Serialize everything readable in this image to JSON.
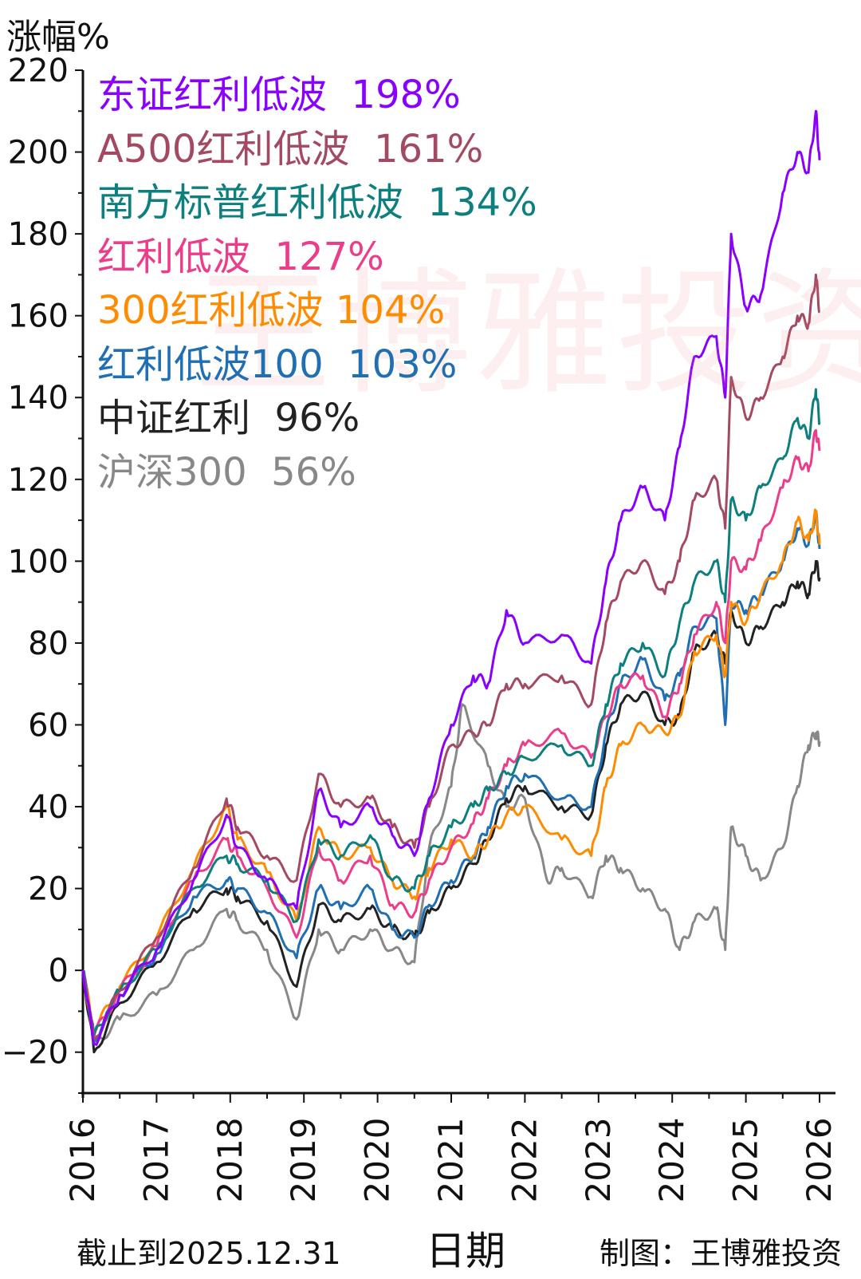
{
  "header": {
    "ylabel": "涨幅%"
  },
  "footer": {
    "cutoff": "截止到2025.12.31",
    "xlabel": "日期",
    "credit": "制图：王博雅投资"
  },
  "watermark": "王博雅投资",
  "chart_data": {
    "type": "line",
    "xlabel": "日期",
    "ylabel": "涨幅%",
    "xlim": [
      2016,
      2026
    ],
    "ylim": [
      -30,
      220
    ],
    "x_ticks": [
      "2016",
      "2017",
      "2018",
      "2019",
      "2020",
      "2021",
      "2022",
      "2023",
      "2024",
      "2025",
      "2026"
    ],
    "y_ticks": [
      "220",
      "200",
      "180",
      "160",
      "140",
      "120",
      "100",
      "80",
      "60",
      "40",
      "20",
      "0",
      "−20"
    ],
    "legend_position": "top-left",
    "grid": false,
    "series": [
      {
        "name": "东证红利低波",
        "label": "198%",
        "color": "#8a00ff",
        "x": [
          2016.0,
          2016.15,
          2016.5,
          2017.0,
          2017.5,
          2017.95,
          2018.1,
          2018.5,
          2018.9,
          2019.2,
          2019.5,
          2019.9,
          2020.2,
          2020.5,
          2020.7,
          2021.0,
          2021.3,
          2021.5,
          2021.75,
          2022.0,
          2022.5,
          2022.9,
          2023.1,
          2023.3,
          2023.6,
          2023.9,
          2024.1,
          2024.3,
          2024.6,
          2024.72,
          2024.8,
          2025.0,
          2025.2,
          2025.5,
          2025.7,
          2025.85,
          2025.95,
          2026.0
        ],
        "y": [
          0,
          -18,
          -6,
          5,
          22,
          38,
          30,
          22,
          15,
          44,
          35,
          40,
          33,
          28,
          42,
          60,
          72,
          70,
          88,
          80,
          82,
          75,
          95,
          110,
          118,
          110,
          128,
          150,
          155,
          140,
          180,
          162,
          165,
          190,
          200,
          195,
          210,
          198
        ]
      },
      {
        "name": "A500红利低波",
        "label": "161%",
        "color": "#a34a62",
        "x": [
          2016.0,
          2016.15,
          2016.5,
          2017.0,
          2017.5,
          2017.95,
          2018.1,
          2018.5,
          2018.9,
          2019.2,
          2019.5,
          2019.9,
          2020.2,
          2020.5,
          2020.7,
          2021.0,
          2021.3,
          2021.5,
          2021.75,
          2022.0,
          2022.5,
          2022.9,
          2023.1,
          2023.3,
          2023.6,
          2023.9,
          2024.1,
          2024.3,
          2024.6,
          2024.72,
          2024.8,
          2025.0,
          2025.2,
          2025.5,
          2025.7,
          2025.85,
          2025.95,
          2026.0
        ],
        "y": [
          0,
          -17,
          -5,
          8,
          25,
          42,
          35,
          28,
          22,
          48,
          40,
          42,
          35,
          30,
          40,
          55,
          58,
          60,
          70,
          70,
          72,
          65,
          85,
          95,
          100,
          92,
          100,
          115,
          120,
          108,
          145,
          135,
          140,
          150,
          160,
          158,
          170,
          161
        ]
      },
      {
        "name": "南方标普红利低波",
        "label": "134%",
        "color": "#0e7f7f",
        "x": [
          2016.0,
          2016.15,
          2016.5,
          2017.0,
          2017.5,
          2017.95,
          2018.1,
          2018.5,
          2018.9,
          2019.2,
          2019.5,
          2019.9,
          2020.2,
          2020.5,
          2020.7,
          2021.0,
          2021.3,
          2021.5,
          2021.75,
          2022.0,
          2022.5,
          2022.9,
          2023.1,
          2023.3,
          2023.6,
          2023.9,
          2024.1,
          2024.3,
          2024.6,
          2024.72,
          2024.8,
          2025.0,
          2025.2,
          2025.5,
          2025.7,
          2025.85,
          2025.95,
          2026.0
        ],
        "y": [
          0,
          -16,
          -5,
          5,
          20,
          28,
          26,
          22,
          12,
          32,
          28,
          33,
          22,
          20,
          28,
          35,
          40,
          44,
          48,
          52,
          55,
          50,
          65,
          75,
          80,
          72,
          85,
          95,
          100,
          90,
          115,
          110,
          118,
          125,
          135,
          130,
          142,
          134
        ]
      },
      {
        "name": "红利低波",
        "label": "127%",
        "color": "#ec3d8b",
        "x": [
          2016.0,
          2016.15,
          2016.5,
          2017.0,
          2017.5,
          2017.95,
          2018.1,
          2018.5,
          2018.9,
          2019.2,
          2019.5,
          2019.9,
          2020.2,
          2020.5,
          2020.7,
          2021.0,
          2021.3,
          2021.5,
          2021.75,
          2022.0,
          2022.5,
          2022.9,
          2023.1,
          2023.3,
          2023.6,
          2023.9,
          2024.1,
          2024.3,
          2024.6,
          2024.72,
          2024.8,
          2025.0,
          2025.2,
          2025.5,
          2025.7,
          2025.85,
          2025.95,
          2026.0
        ],
        "y": [
          0,
          -16,
          -5,
          6,
          22,
          32,
          28,
          20,
          8,
          30,
          22,
          28,
          16,
          14,
          22,
          30,
          36,
          42,
          50,
          55,
          58,
          52,
          62,
          70,
          72,
          62,
          70,
          82,
          90,
          80,
          100,
          98,
          105,
          118,
          125,
          122,
          132,
          127
        ]
      },
      {
        "name": "300红利低波",
        "label": "104%",
        "color": "#ff8c00",
        "x": [
          2016.0,
          2016.15,
          2016.5,
          2017.0,
          2017.5,
          2017.95,
          2018.1,
          2018.5,
          2018.9,
          2019.2,
          2019.5,
          2019.9,
          2020.2,
          2020.5,
          2020.7,
          2021.0,
          2021.3,
          2021.5,
          2021.75,
          2022.0,
          2022.5,
          2022.9,
          2023.1,
          2023.3,
          2023.6,
          2023.9,
          2024.1,
          2024.3,
          2024.6,
          2024.72,
          2024.8,
          2025.0,
          2025.2,
          2025.5,
          2025.7,
          2025.85,
          2025.95,
          2026.0
        ],
        "y": [
          0,
          -15,
          -4,
          8,
          25,
          40,
          32,
          24,
          12,
          35,
          28,
          30,
          22,
          18,
          25,
          32,
          28,
          32,
          38,
          40,
          32,
          28,
          45,
          55,
          60,
          58,
          62,
          78,
          82,
          72,
          90,
          85,
          92,
          100,
          110,
          105,
          112,
          104
        ]
      },
      {
        "name": "红利低波100",
        "label": "103%",
        "color": "#1f6fb2",
        "x": [
          2016.0,
          2016.15,
          2016.5,
          2017.0,
          2017.5,
          2017.95,
          2018.1,
          2018.5,
          2018.9,
          2019.2,
          2019.5,
          2019.9,
          2020.2,
          2020.5,
          2020.7,
          2021.0,
          2021.3,
          2021.5,
          2021.75,
          2022.0,
          2022.5,
          2022.9,
          2023.1,
          2023.3,
          2023.6,
          2023.9,
          2024.1,
          2024.3,
          2024.6,
          2024.72,
          2024.8,
          2025.0,
          2025.2,
          2025.5,
          2025.7,
          2025.85,
          2025.95,
          2026.0
        ],
        "y": [
          0,
          -17,
          -6,
          4,
          18,
          22,
          20,
          14,
          3,
          20,
          15,
          20,
          10,
          8,
          16,
          22,
          28,
          35,
          45,
          48,
          42,
          40,
          58,
          70,
          76,
          66,
          72,
          84,
          86,
          60,
          90,
          88,
          92,
          100,
          108,
          104,
          112,
          103
        ]
      },
      {
        "name": "中证红利",
        "label": "96%",
        "color": "#222222",
        "x": [
          2016.0,
          2016.15,
          2016.5,
          2017.0,
          2017.5,
          2017.95,
          2018.1,
          2018.5,
          2018.9,
          2019.2,
          2019.5,
          2019.9,
          2020.2,
          2020.5,
          2020.7,
          2021.0,
          2021.3,
          2021.5,
          2021.75,
          2022.0,
          2022.5,
          2022.9,
          2023.1,
          2023.3,
          2023.6,
          2023.9,
          2024.1,
          2024.3,
          2024.6,
          2024.72,
          2024.8,
          2025.0,
          2025.2,
          2025.5,
          2025.7,
          2025.85,
          2025.95,
          2026.0
        ],
        "y": [
          0,
          -20,
          -8,
          2,
          15,
          20,
          18,
          12,
          -4,
          16,
          12,
          15,
          10,
          8,
          14,
          20,
          26,
          32,
          42,
          45,
          40,
          38,
          55,
          65,
          68,
          60,
          62,
          78,
          82,
          75,
          88,
          80,
          84,
          90,
          95,
          92,
          100,
          96
        ]
      },
      {
        "name": "沪深300",
        "label": "56%",
        "color": "#888888",
        "x": [
          2016.0,
          2016.15,
          2016.5,
          2017.0,
          2017.5,
          2017.95,
          2018.1,
          2018.5,
          2018.9,
          2019.2,
          2019.5,
          2019.9,
          2020.2,
          2020.5,
          2020.7,
          2021.0,
          2021.15,
          2021.5,
          2021.75,
          2022.0,
          2022.3,
          2022.5,
          2022.9,
          2023.1,
          2023.3,
          2023.6,
          2023.9,
          2024.1,
          2024.3,
          2024.6,
          2024.72,
          2024.8,
          2025.0,
          2025.2,
          2025.5,
          2025.7,
          2025.85,
          2025.95,
          2026.0
        ],
        "y": [
          0,
          -18,
          -12,
          -6,
          5,
          15,
          12,
          5,
          -12,
          10,
          5,
          10,
          5,
          2,
          30,
          45,
          65,
          50,
          40,
          42,
          22,
          25,
          18,
          28,
          25,
          20,
          15,
          5,
          12,
          15,
          5,
          35,
          28,
          22,
          30,
          45,
          55,
          58,
          56
        ]
      }
    ]
  }
}
